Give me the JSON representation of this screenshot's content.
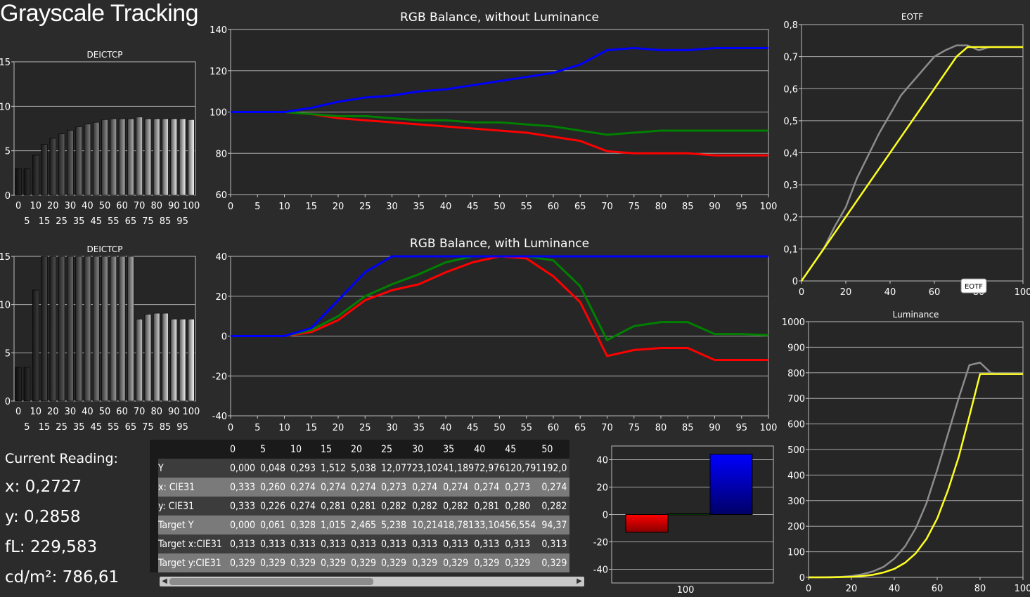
{
  "page": {
    "title": "Grayscale Tracking",
    "readout": {
      "heading": "Current Reading:",
      "x": "x: 0,2727",
      "y": "y: 0,2858",
      "fl": "fL: 229,583",
      "cdm2": "cd/m²: 786,61"
    }
  },
  "colors": {
    "background": "#2b2b2b",
    "plot_bg": "#262626",
    "grid": "#aaaaaa",
    "red": "#ff0000",
    "green": "#008000",
    "blue": "#0000ff",
    "gray": "#8c8c8c",
    "yellow": "#ffff22"
  },
  "table": {
    "columns": [
      "0",
      "5",
      "10",
      "15",
      "20",
      "25",
      "30",
      "35",
      "40",
      "45",
      "50"
    ],
    "rows": [
      {
        "label": "Y",
        "values": [
          "0,000",
          "0,048",
          "0,293",
          "1,512",
          "5,038",
          "12,077",
          "23,102",
          "41,189",
          "72,976",
          "120,791",
          "192,0"
        ]
      },
      {
        "label": "x: CIE31",
        "values": [
          "0,333",
          "0,260",
          "0,274",
          "0,274",
          "0,274",
          "0,273",
          "0,274",
          "0,274",
          "0,274",
          "0,273",
          "0,274"
        ]
      },
      {
        "label": "y: CIE31",
        "values": [
          "0,333",
          "0,226",
          "0,274",
          "0,281",
          "0,281",
          "0,282",
          "0,282",
          "0,282",
          "0,281",
          "0,280",
          "0,282"
        ]
      },
      {
        "label": "Target Y",
        "values": [
          "0,000",
          "0,061",
          "0,328",
          "1,015",
          "2,465",
          "5,238",
          "10,214",
          "18,781",
          "33,104",
          "56,554",
          "94,37"
        ]
      },
      {
        "label": "Target x:CIE31",
        "values": [
          "0,313",
          "0,313",
          "0,313",
          "0,313",
          "0,313",
          "0,313",
          "0,313",
          "0,313",
          "0,313",
          "0,313",
          "0,313"
        ]
      },
      {
        "label": "Target y:CIE31",
        "values": [
          "0,329",
          "0,329",
          "0,329",
          "0,329",
          "0,329",
          "0,329",
          "0,329",
          "0,329",
          "0,329",
          "0,329",
          "0,329"
        ]
      }
    ]
  },
  "chart_data": [
    {
      "id": "deictcp_top",
      "type": "bar",
      "title": "DEICTCP",
      "categories": [
        0,
        5,
        10,
        15,
        20,
        25,
        30,
        35,
        40,
        45,
        50,
        55,
        60,
        65,
        70,
        75,
        80,
        85,
        90,
        95,
        100
      ],
      "values": [
        3.0,
        3.0,
        4.5,
        5.7,
        6.4,
        6.9,
        7.3,
        7.7,
        8.0,
        8.2,
        8.5,
        8.6,
        8.6,
        8.6,
        8.8,
        8.6,
        8.6,
        8.6,
        8.6,
        8.6,
        8.5
      ],
      "ylim": [
        0,
        15
      ],
      "yticks": [
        0,
        5,
        10,
        15
      ],
      "xticks_top": [
        0,
        10,
        20,
        30,
        40,
        50,
        60,
        70,
        80,
        90,
        100
      ],
      "xticks_bottom": [
        5,
        15,
        25,
        35,
        45,
        55,
        65,
        75,
        85,
        95
      ]
    },
    {
      "id": "deictcp_bottom",
      "type": "bar",
      "title": "DEICTCP",
      "categories": [
        0,
        5,
        10,
        15,
        20,
        25,
        30,
        35,
        40,
        45,
        50,
        55,
        60,
        65,
        70,
        75,
        80,
        85,
        90,
        95,
        100
      ],
      "values": [
        3.5,
        3.5,
        11.5,
        15,
        15,
        15,
        15,
        15,
        15,
        15,
        15,
        15,
        15,
        15,
        8.5,
        9.0,
        9.1,
        9.1,
        8.5,
        8.5,
        8.5
      ],
      "ylim": [
        0,
        15
      ],
      "yticks": [
        0,
        5,
        10,
        15
      ],
      "xticks_top": [
        0,
        10,
        20,
        30,
        40,
        50,
        60,
        70,
        80,
        90,
        100
      ],
      "xticks_bottom": [
        5,
        15,
        25,
        35,
        45,
        55,
        65,
        75,
        85,
        95
      ]
    },
    {
      "id": "rgb_without_lum",
      "type": "line",
      "title": "RGB Balance, without Luminance",
      "x": [
        0,
        5,
        10,
        15,
        20,
        25,
        30,
        35,
        40,
        45,
        50,
        55,
        60,
        65,
        70,
        75,
        80,
        85,
        90,
        95,
        100
      ],
      "series": [
        {
          "color": "red",
          "values": [
            100,
            100,
            100,
            99,
            97,
            96,
            95,
            94,
            93,
            92,
            91,
            90,
            88,
            86,
            81,
            80,
            80,
            80,
            79,
            79,
            79
          ]
        },
        {
          "color": "green",
          "values": [
            100,
            100,
            100,
            99,
            98,
            98,
            97,
            96,
            96,
            95,
            95,
            94,
            93,
            91,
            89,
            90,
            91,
            91,
            91,
            91,
            91
          ]
        },
        {
          "color": "blue",
          "values": [
            100,
            100,
            100,
            102,
            105,
            107,
            108,
            110,
            111,
            113,
            115,
            117,
            119,
            123,
            130,
            131,
            130,
            130,
            131,
            131,
            131
          ]
        }
      ],
      "ylim": [
        60,
        140
      ],
      "yticks": [
        60,
        80,
        100,
        120,
        140
      ],
      "xticks": [
        0,
        5,
        10,
        15,
        20,
        25,
        30,
        35,
        40,
        45,
        50,
        55,
        60,
        65,
        70,
        75,
        80,
        85,
        90,
        95,
        100
      ]
    },
    {
      "id": "rgb_with_lum",
      "type": "line",
      "title": "RGB Balance, with Luminance",
      "x": [
        0,
        5,
        10,
        15,
        20,
        25,
        30,
        35,
        40,
        45,
        50,
        55,
        60,
        65,
        70,
        75,
        80,
        85,
        90,
        95,
        100
      ],
      "series": [
        {
          "color": "red",
          "values": [
            0,
            0,
            0,
            2,
            8,
            18,
            23,
            26,
            32,
            37,
            40,
            39,
            30,
            17,
            -10,
            -7,
            -6,
            -6,
            -12,
            -12,
            -12
          ]
        },
        {
          "color": "green",
          "values": [
            0,
            0,
            0,
            3,
            10,
            20,
            26,
            31,
            37,
            40,
            40,
            40,
            38,
            25,
            -2,
            5,
            7,
            7,
            1,
            1,
            0.5
          ]
        },
        {
          "color": "blue",
          "values": [
            0,
            0,
            0,
            4,
            18,
            32,
            40,
            40,
            40,
            40,
            40,
            40,
            40,
            40,
            40,
            40,
            40,
            40,
            40,
            40,
            40
          ]
        }
      ],
      "ylim": [
        -40,
        40
      ],
      "yticks": [
        -40,
        -20,
        0,
        20,
        40
      ],
      "xticks": [
        0,
        5,
        10,
        15,
        20,
        25,
        30,
        35,
        40,
        45,
        50,
        55,
        60,
        65,
        70,
        75,
        80,
        85,
        90,
        95,
        100
      ]
    },
    {
      "id": "rgb_current_bar",
      "type": "bar",
      "categories": [
        "100"
      ],
      "series": [
        {
          "color": "red",
          "values": [
            -13
          ]
        },
        {
          "color": "green",
          "values": [
            0.5
          ]
        },
        {
          "color": "blue",
          "values": [
            44
          ]
        }
      ],
      "ylim": [
        -50,
        50
      ],
      "yticks": [
        -40,
        -20,
        0,
        20,
        40
      ]
    },
    {
      "id": "eotf",
      "type": "line",
      "title": "EOTF",
      "tooltip": "EOTF",
      "x": [
        0,
        5,
        10,
        15,
        20,
        25,
        30,
        35,
        40,
        45,
        50,
        55,
        60,
        65,
        70,
        75,
        80,
        85,
        90,
        95,
        100
      ],
      "series": [
        {
          "color": "gray",
          "values": [
            0,
            0.05,
            0.1,
            0.17,
            0.23,
            0.32,
            0.39,
            0.46,
            0.52,
            0.58,
            0.62,
            0.66,
            0.7,
            0.72,
            0.735,
            0.735,
            0.72,
            0.73,
            0.73,
            0.73,
            0.73
          ]
        },
        {
          "color": "yellow",
          "values": [
            0,
            0.05,
            0.1,
            0.15,
            0.2,
            0.25,
            0.3,
            0.35,
            0.4,
            0.45,
            0.5,
            0.55,
            0.6,
            0.65,
            0.7,
            0.73,
            0.73,
            0.73,
            0.73,
            0.73,
            0.73
          ]
        }
      ],
      "ylim": [
        0,
        0.8
      ],
      "yticks": [
        0,
        0.1,
        0.2,
        0.3,
        0.4,
        0.5,
        0.6,
        0.7,
        0.8
      ],
      "xticks": [
        0,
        20,
        40,
        60,
        80,
        100
      ]
    },
    {
      "id": "luminance",
      "type": "line",
      "title": "Luminance",
      "x": [
        0,
        5,
        10,
        15,
        20,
        25,
        30,
        35,
        40,
        45,
        50,
        55,
        60,
        65,
        70,
        75,
        80,
        85,
        90,
        95,
        100
      ],
      "series": [
        {
          "color": "gray",
          "values": [
            0,
            0,
            1,
            2,
            5,
            12,
            23,
            41,
            73,
            121,
            192,
            290,
            420,
            560,
            700,
            830,
            840,
            800,
            795,
            795,
            795
          ]
        },
        {
          "color": "yellow",
          "values": [
            0,
            0,
            0,
            1,
            2,
            5,
            10,
            19,
            33,
            57,
            94,
            150,
            230,
            340,
            470,
            630,
            795,
            795,
            795,
            795,
            795
          ]
        }
      ],
      "ylim": [
        0,
        1000
      ],
      "yticks": [
        0,
        100,
        200,
        300,
        400,
        500,
        600,
        700,
        800,
        900,
        1000
      ],
      "xticks": [
        0,
        20,
        40,
        60,
        80,
        100
      ]
    }
  ]
}
